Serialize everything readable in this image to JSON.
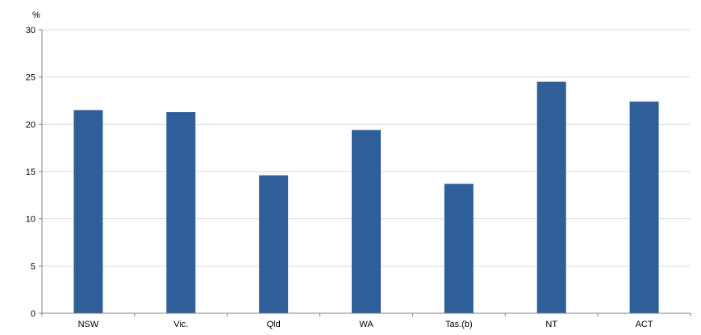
{
  "chart_data": {
    "type": "bar",
    "title": "",
    "xlabel": "",
    "ylabel": "%",
    "categories": [
      "NSW",
      "Vic.",
      "Qld",
      "WA",
      "Tas.(b)",
      "NT",
      "ACT"
    ],
    "values": [
      21.5,
      21.3,
      14.6,
      19.4,
      13.7,
      24.5,
      22.4
    ],
    "ylim": [
      0,
      30
    ],
    "yticks": [
      0,
      5,
      10,
      15,
      20,
      25,
      30
    ],
    "grid": true,
    "bar_color": "#2e5f98",
    "grid_color": "#d9d9d9"
  }
}
